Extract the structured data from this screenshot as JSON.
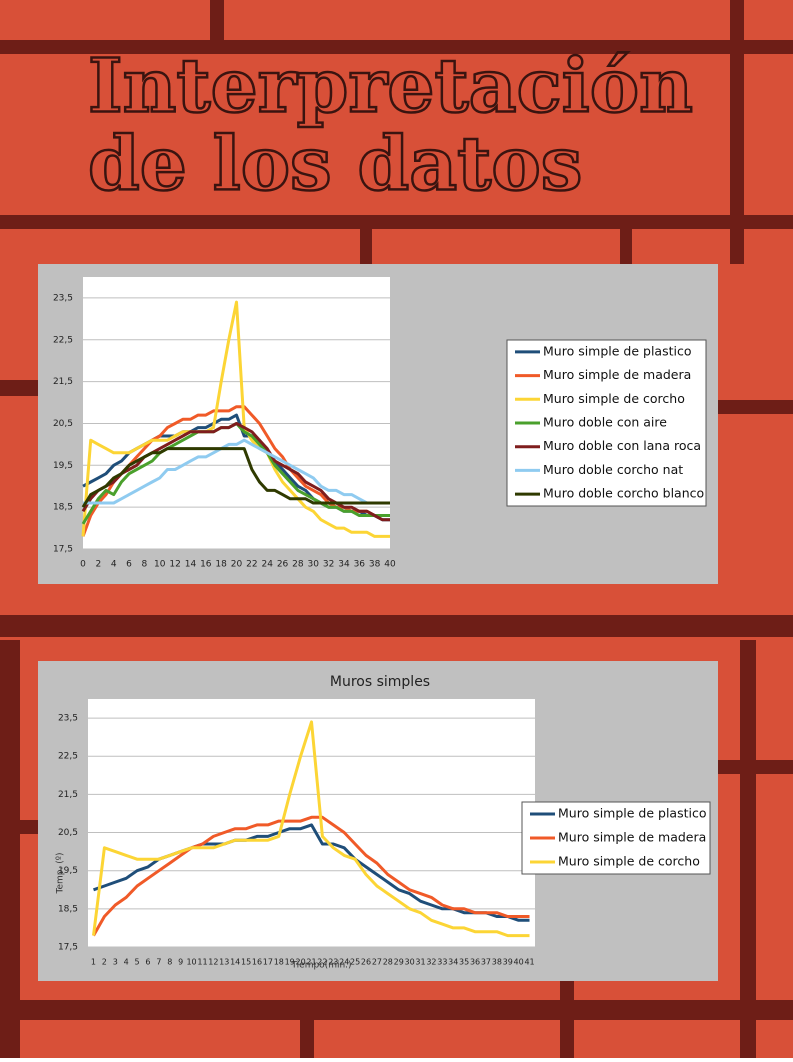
{
  "slide": {
    "title": [
      "Interpretación",
      "de los datos"
    ]
  },
  "chart_data": [
    {
      "type": "line",
      "x": [
        0,
        1,
        2,
        3,
        4,
        5,
        6,
        7,
        8,
        9,
        10,
        11,
        12,
        13,
        14,
        15,
        16,
        17,
        18,
        19,
        20,
        21,
        22,
        23,
        24,
        25,
        26,
        27,
        28,
        29,
        30,
        31,
        32,
        33,
        34,
        35,
        36,
        37,
        38,
        39,
        40
      ],
      "xlim": [
        0,
        40
      ],
      "xticks": [
        0,
        2,
        4,
        6,
        8,
        10,
        12,
        14,
        16,
        18,
        20,
        22,
        24,
        26,
        28,
        30,
        32,
        34,
        36,
        38,
        40
      ],
      "ylim": [
        17.5,
        24
      ],
      "yticks": [
        {
          "value": 17.5,
          "label": "17,5"
        },
        {
          "value": 18.5,
          "label": "18,5"
        },
        {
          "value": 19.5,
          "label": "19,5"
        },
        {
          "value": 20.5,
          "label": "20,5"
        },
        {
          "value": 21.5,
          "label": "21,5"
        },
        {
          "value": 22.5,
          "label": "22,5"
        },
        {
          "value": 23.5,
          "label": "23,5"
        }
      ],
      "grid": true,
      "legend": "right",
      "series": [
        {
          "name": "Muro simple de plastico",
          "color": "#1f4e79",
          "values": [
            19.0,
            19.1,
            19.2,
            19.3,
            19.5,
            19.6,
            19.8,
            19.9,
            20.0,
            20.1,
            20.2,
            20.2,
            20.2,
            20.3,
            20.3,
            20.4,
            20.4,
            20.5,
            20.6,
            20.6,
            20.7,
            20.2,
            20.2,
            20.1,
            19.8,
            19.6,
            19.4,
            19.2,
            19.0,
            18.9,
            18.7,
            18.6,
            18.5,
            18.5,
            18.4,
            18.4,
            18.4,
            18.3,
            18.3,
            18.2,
            18.2
          ]
        },
        {
          "name": "Muro simple de madera",
          "color": "#f05a28",
          "values": [
            17.8,
            18.3,
            18.6,
            18.8,
            19.1,
            19.3,
            19.5,
            19.7,
            19.9,
            20.1,
            20.2,
            20.4,
            20.5,
            20.6,
            20.6,
            20.7,
            20.7,
            20.8,
            20.8,
            20.8,
            20.9,
            20.9,
            20.7,
            20.5,
            20.2,
            19.9,
            19.7,
            19.4,
            19.2,
            19.0,
            18.9,
            18.8,
            18.6,
            18.5,
            18.5,
            18.4,
            18.4,
            18.4,
            18.3,
            18.3,
            18.3
          ]
        },
        {
          "name": "Muro simple de corcho",
          "color": "#fcd535",
          "values": [
            17.8,
            20.1,
            20.0,
            19.9,
            19.8,
            19.8,
            19.8,
            19.9,
            20.0,
            20.1,
            20.1,
            20.1,
            20.2,
            20.3,
            20.3,
            20.3,
            20.3,
            20.4,
            21.5,
            22.5,
            23.4,
            20.4,
            20.1,
            19.9,
            19.8,
            19.4,
            19.1,
            18.9,
            18.7,
            18.5,
            18.4,
            18.2,
            18.1,
            18.0,
            18.0,
            17.9,
            17.9,
            17.9,
            17.8,
            17.8,
            17.8
          ]
        },
        {
          "name": "Muro doble con aire",
          "color": "#4aa02c",
          "values": [
            18.1,
            18.4,
            18.7,
            18.9,
            18.8,
            19.1,
            19.3,
            19.4,
            19.5,
            19.6,
            19.8,
            19.9,
            20.0,
            20.1,
            20.2,
            20.3,
            20.3,
            20.3,
            20.4,
            20.4,
            20.5,
            20.3,
            20.2,
            20.0,
            19.8,
            19.5,
            19.3,
            19.1,
            18.9,
            18.8,
            18.7,
            18.6,
            18.5,
            18.5,
            18.4,
            18.4,
            18.3,
            18.3,
            18.3,
            18.3,
            18.3
          ]
        },
        {
          "name": "Muro doble con lana roca",
          "color": "#7f1d1d",
          "values": [
            18.4,
            18.7,
            18.9,
            19.0,
            19.1,
            19.3,
            19.4,
            19.5,
            19.7,
            19.8,
            19.9,
            20.0,
            20.1,
            20.2,
            20.3,
            20.3,
            20.3,
            20.3,
            20.4,
            20.4,
            20.5,
            20.4,
            20.3,
            20.1,
            19.9,
            19.6,
            19.5,
            19.4,
            19.3,
            19.1,
            19.0,
            18.9,
            18.7,
            18.6,
            18.5,
            18.5,
            18.4,
            18.4,
            18.3,
            18.2,
            18.2
          ]
        },
        {
          "name": "Muro doble corcho nat",
          "color": "#8fcbf0",
          "values": [
            18.6,
            18.6,
            18.6,
            18.6,
            18.6,
            18.7,
            18.8,
            18.9,
            19.0,
            19.1,
            19.2,
            19.4,
            19.4,
            19.5,
            19.6,
            19.7,
            19.7,
            19.8,
            19.9,
            20.0,
            20.0,
            20.1,
            20.0,
            19.9,
            19.8,
            19.7,
            19.6,
            19.5,
            19.4,
            19.3,
            19.2,
            19.0,
            18.9,
            18.9,
            18.8,
            18.8,
            18.7,
            18.6,
            18.6,
            18.6,
            18.6
          ]
        },
        {
          "name": "Muro doble corcho blanco",
          "color": "#2f3a00",
          "values": [
            18.5,
            18.8,
            18.9,
            19.0,
            19.2,
            19.3,
            19.5,
            19.6,
            19.7,
            19.8,
            19.8,
            19.9,
            19.9,
            19.9,
            19.9,
            19.9,
            19.9,
            19.9,
            19.9,
            19.9,
            19.9,
            19.9,
            19.4,
            19.1,
            18.9,
            18.9,
            18.8,
            18.7,
            18.7,
            18.7,
            18.6,
            18.6,
            18.6,
            18.6,
            18.6,
            18.6,
            18.6,
            18.6,
            18.6,
            18.6,
            18.6
          ]
        }
      ]
    },
    {
      "type": "line",
      "title": "Muros simples",
      "x_label": "Tiempo(min.)",
      "y_label": "Temp. (º)",
      "categories": [
        "1",
        "2",
        "3",
        "4",
        "5",
        "6",
        "7",
        "8",
        "9",
        "10",
        "11",
        "12",
        "13",
        "14",
        "15",
        "16",
        "17",
        "18",
        "19",
        "20",
        "21",
        "22",
        "23",
        "24",
        "25",
        "26",
        "27",
        "28",
        "29",
        "30",
        "31",
        "32",
        "33",
        "34",
        "35",
        "36",
        "37",
        "38",
        "39",
        "40",
        "41"
      ],
      "ylim": [
        17.5,
        24
      ],
      "yticks": [
        {
          "value": 17.5,
          "label": "17,5"
        },
        {
          "value": 18.5,
          "label": "18,5"
        },
        {
          "value": 19.5,
          "label": "19,5"
        },
        {
          "value": 20.5,
          "label": "20,5"
        },
        {
          "value": 21.5,
          "label": "21,5"
        },
        {
          "value": 22.5,
          "label": "22,5"
        },
        {
          "value": 23.5,
          "label": "23,5"
        }
      ],
      "grid": true,
      "legend": "right",
      "series": [
        {
          "name": "Muro simple de plastico",
          "color": "#1f4e79",
          "values": [
            19.0,
            19.1,
            19.2,
            19.3,
            19.5,
            19.6,
            19.8,
            19.9,
            20.0,
            20.1,
            20.2,
            20.2,
            20.2,
            20.3,
            20.3,
            20.4,
            20.4,
            20.5,
            20.6,
            20.6,
            20.7,
            20.2,
            20.2,
            20.1,
            19.8,
            19.6,
            19.4,
            19.2,
            19.0,
            18.9,
            18.7,
            18.6,
            18.5,
            18.5,
            18.4,
            18.4,
            18.4,
            18.3,
            18.3,
            18.2,
            18.2
          ]
        },
        {
          "name": "Muro simple de madera",
          "color": "#f05a28",
          "values": [
            17.8,
            18.3,
            18.6,
            18.8,
            19.1,
            19.3,
            19.5,
            19.7,
            19.9,
            20.1,
            20.2,
            20.4,
            20.5,
            20.6,
            20.6,
            20.7,
            20.7,
            20.8,
            20.8,
            20.8,
            20.9,
            20.9,
            20.7,
            20.5,
            20.2,
            19.9,
            19.7,
            19.4,
            19.2,
            19.0,
            18.9,
            18.8,
            18.6,
            18.5,
            18.5,
            18.4,
            18.4,
            18.4,
            18.3,
            18.3,
            18.3
          ]
        },
        {
          "name": "Muro simple de corcho",
          "color": "#fcd535",
          "values": [
            17.8,
            20.1,
            20.0,
            19.9,
            19.8,
            19.8,
            19.8,
            19.9,
            20.0,
            20.1,
            20.1,
            20.1,
            20.2,
            20.3,
            20.3,
            20.3,
            20.3,
            20.4,
            21.5,
            22.5,
            23.4,
            20.4,
            20.1,
            19.9,
            19.8,
            19.4,
            19.1,
            18.9,
            18.7,
            18.5,
            18.4,
            18.2,
            18.1,
            18.0,
            18.0,
            17.9,
            17.9,
            17.9,
            17.8,
            17.8,
            17.8
          ]
        }
      ]
    }
  ]
}
